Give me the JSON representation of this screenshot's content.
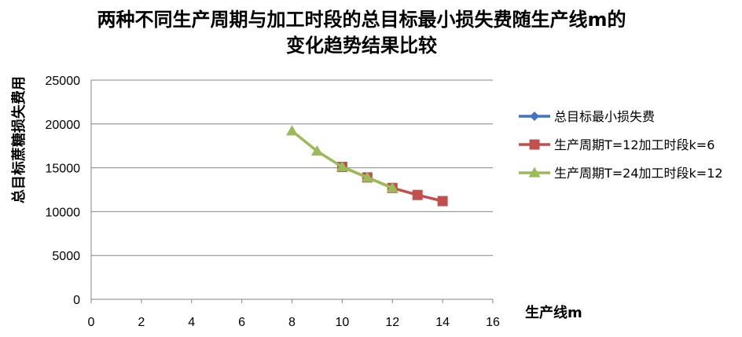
{
  "chart_data": {
    "type": "line",
    "title": [
      "两种不同生产周期与加工时段的总目标最小损失费随生产线m的",
      "变化趋势结果比较"
    ],
    "xlabel": "生产线m",
    "ylabel": "总目标蔗糖损失费用",
    "xlim": [
      0,
      16
    ],
    "ylim": [
      0,
      25000
    ],
    "xticks": [
      0,
      2,
      4,
      6,
      8,
      10,
      12,
      14,
      16
    ],
    "yticks": [
      0,
      5000,
      10000,
      15000,
      20000,
      25000
    ],
    "grid": "horizontal",
    "legend_position": "right",
    "series": [
      {
        "name": "总目标最小损失费",
        "color": "#4472C4",
        "marker": "diamond",
        "x": [],
        "y": []
      },
      {
        "name": "生产周期T=12加工时段k=6",
        "color": "#C0504D",
        "marker": "square",
        "x": [
          10,
          11,
          12,
          13,
          14
        ],
        "y": [
          15100,
          13900,
          12700,
          11900,
          11200
        ]
      },
      {
        "name": "生产周期T=24加工时段k=12",
        "color": "#9BBB59",
        "marker": "triangle",
        "x": [
          8,
          9,
          10,
          11,
          12
        ],
        "y": [
          19200,
          16900,
          15100,
          13900,
          12700
        ]
      }
    ]
  }
}
